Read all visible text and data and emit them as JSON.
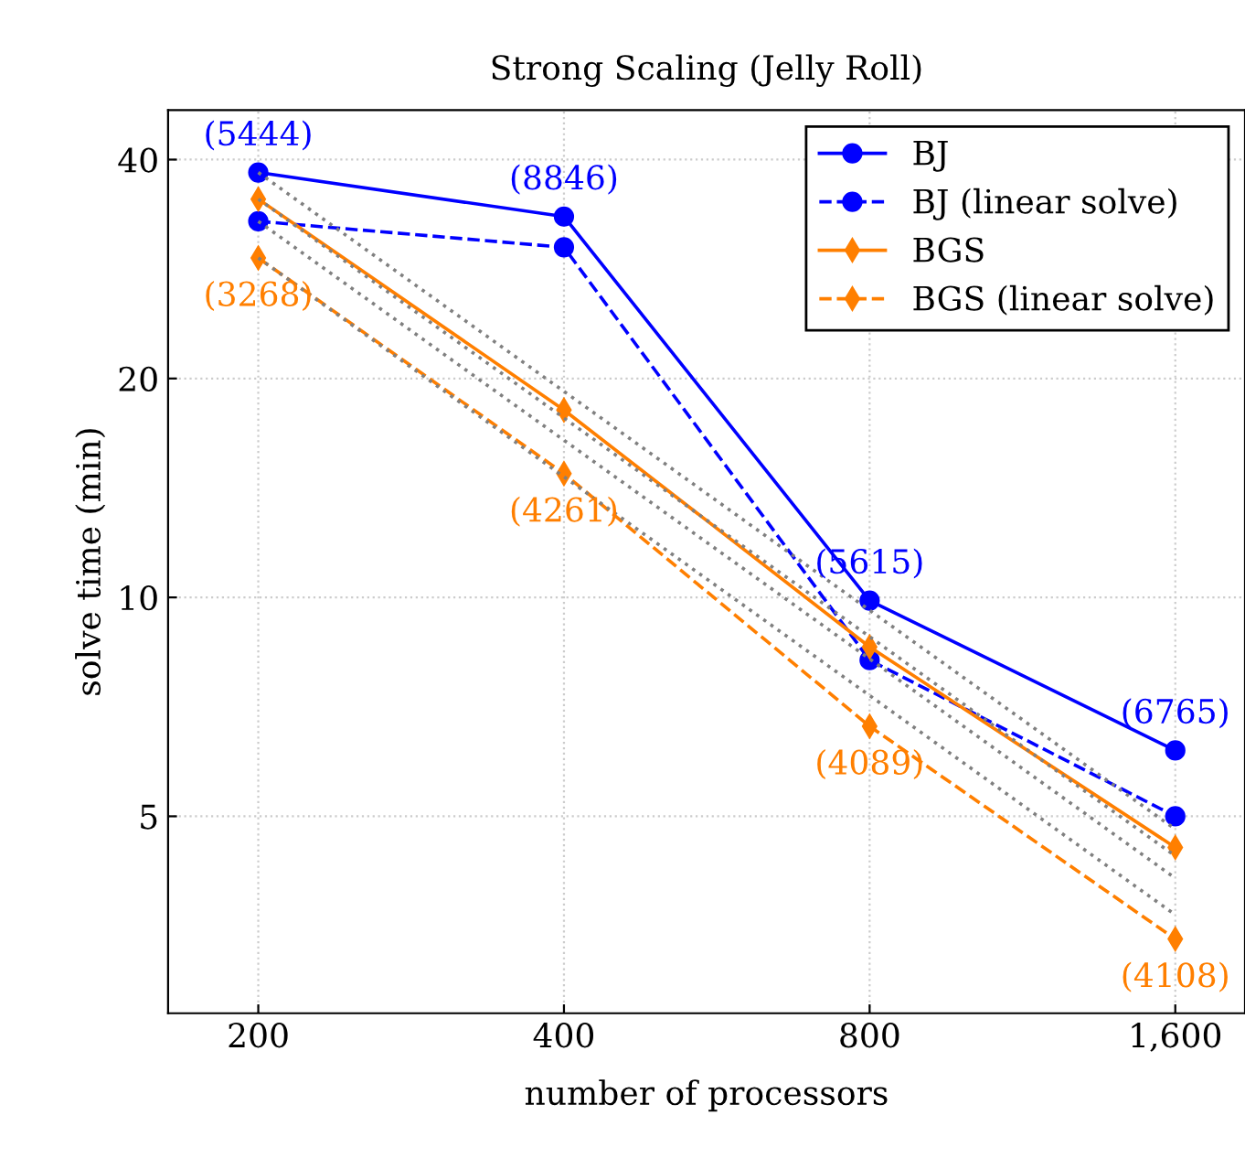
{
  "chart_data": {
    "type": "line",
    "title": "Strong Scaling (Jelly Roll)",
    "xlabel": "number of processors",
    "ylabel": "solve time (min)",
    "x": [
      200,
      400,
      800,
      1600
    ],
    "log": "xy",
    "grid": true,
    "legend": "top right",
    "xlim": [
      163,
      1874
    ],
    "xticks": [
      200,
      400,
      800,
      {
        "value": 1600,
        "label": "1,600"
      }
    ],
    "ylim": [
      2.68,
      46.8
    ],
    "yticks": [
      5,
      10,
      20,
      40
    ],
    "series": [
      {
        "name": "BJ",
        "color": "#0000ff",
        "marker": "circle",
        "line_style": "solid",
        "values": [
          38.4,
          33.4,
          9.9,
          6.16
        ]
      },
      {
        "name": "BJ (linear solve)",
        "color": "#0000ff",
        "marker": "circle",
        "line_style": "dashed",
        "values": [
          32.9,
          30.3,
          8.2,
          5.0
        ]
      },
      {
        "name": "BGS",
        "color": "#ff7f00",
        "marker": "diamond",
        "line_style": "solid",
        "values": [
          35.3,
          18.1,
          8.55,
          4.53
        ]
      },
      {
        "name": "BGS (linear solve)",
        "color": "#ff7f00",
        "marker": "diamond",
        "line_style": "dashed",
        "values": [
          29.3,
          14.8,
          6.65,
          3.39
        ]
      },
      {
        "color": "#808080",
        "marker": "none",
        "line_style": "dotted",
        "values": [
          38.4,
          19.2,
          9.6,
          4.8
        ]
      },
      {
        "color": "#808080",
        "marker": "none",
        "line_style": "dotted",
        "values": [
          35.3,
          17.65,
          8.83,
          4.41
        ]
      },
      {
        "color": "#808080",
        "marker": "none",
        "line_style": "dotted",
        "values": [
          32.9,
          16.45,
          8.23,
          4.11
        ]
      },
      {
        "color": "#808080",
        "marker": "none",
        "line_style": "dotted",
        "values": [
          29.3,
          14.65,
          7.33,
          3.66
        ]
      }
    ],
    "annotations": [
      {
        "text": "(5444)",
        "x": 200,
        "y": 38.4
      },
      {
        "text": "(8846)",
        "x": 400,
        "y": 33.4
      },
      {
        "text": "(5615)",
        "x": 800,
        "y": 9.9
      },
      {
        "text": "(6765)",
        "x": 1600,
        "y": 6.16
      },
      {
        "text": "(3268)",
        "x": 200,
        "y": 29.3
      },
      {
        "text": "(4261)",
        "x": 400,
        "y": 14.8
      },
      {
        "text": "(4089)",
        "x": 800,
        "y": 6.65
      },
      {
        "text": "(4108)",
        "x": 1600,
        "y": 3.39
      }
    ]
  }
}
